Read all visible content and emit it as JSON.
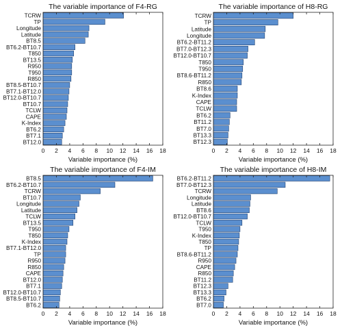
{
  "chart_data": [
    {
      "type": "bar",
      "orientation": "horizontal",
      "title": "The variable importance of F4-RG",
      "xlabel": "Variable importance (%)",
      "ylabel": "",
      "xlim": [
        0,
        18
      ],
      "xticks": [
        0,
        2,
        4,
        6,
        8,
        10,
        12,
        14,
        16,
        18
      ],
      "grid": false,
      "bar_color": "#5b8fcf",
      "categories": [
        "TCRW",
        "TP",
        "Longitude",
        "Latitude",
        "BT8.5",
        "BT6.2-BT10.7",
        "T850",
        "BT13.5",
        "R950",
        "T950",
        "R850",
        "BT8.5-BT10.7",
        "BT7.1-BT12.0",
        "BT12.0-BT10.7",
        "BT10.7",
        "TCLW",
        "CAPE",
        "K-Index",
        "BT6.2",
        "BT7.1",
        "BT12.0"
      ],
      "values": [
        12.1,
        9.3,
        6.9,
        6.8,
        6.3,
        4.8,
        4.6,
        4.4,
        4.3,
        4.3,
        4.2,
        4.0,
        3.9,
        3.8,
        3.7,
        3.6,
        3.5,
        3.3,
        3.1,
        2.9,
        2.8
      ]
    },
    {
      "type": "bar",
      "orientation": "horizontal",
      "title": "The variable importance of H8-RG",
      "xlabel": "Variable importance (%)",
      "ylabel": "",
      "xlim": [
        0,
        18
      ],
      "xticks": [
        0,
        2,
        4,
        6,
        8,
        10,
        12,
        14,
        16,
        18
      ],
      "grid": false,
      "bar_color": "#5b8fcf",
      "categories": [
        "TCRW",
        "TP",
        "Latitude",
        "Longitude",
        "BT6.2-BT11.2",
        "BT7.0-BT12.3",
        "BT12.0-BT10.7",
        "T850",
        "T950",
        "BT8.6-BT11.2",
        "R850",
        "BT8.6",
        "K-Index",
        "CAPE",
        "TCLW",
        "BT6.2",
        "BT11.2",
        "BT7.0",
        "BT13.3",
        "BT12.3"
      ],
      "values": [
        12.0,
        9.7,
        7.8,
        7.7,
        6.2,
        5.2,
        5.1,
        4.5,
        4.4,
        4.3,
        4.2,
        3.6,
        3.6,
        3.5,
        3.5,
        2.5,
        2.4,
        2.3,
        2.2,
        2.1
      ]
    },
    {
      "type": "bar",
      "orientation": "horizontal",
      "title": "The variable importance of F4-IM",
      "xlabel": "Variable importance (%)",
      "ylabel": "",
      "xlim": [
        0,
        18
      ],
      "xticks": [
        0,
        2,
        4,
        6,
        8,
        10,
        12,
        14,
        16,
        18
      ],
      "grid": false,
      "bar_color": "#5b8fcf",
      "categories": [
        "BT8.5",
        "BT6.2-BT10.7",
        "TCRW",
        "BT10.7",
        "Longitude",
        "Latitude",
        "TCLW",
        "BT13.5",
        "T950",
        "T850",
        "K-Index",
        "BT7.1-BT12.0",
        "TP",
        "R950",
        "R850",
        "CAPE",
        "BT12.0",
        "BT7.1",
        "BT12.0-BT10.7",
        "BT8.5-BT10.7",
        "BT6.2"
      ],
      "values": [
        16.5,
        10.8,
        8.6,
        5.6,
        5.4,
        5.1,
        4.8,
        4.5,
        3.9,
        3.7,
        3.6,
        3.4,
        3.4,
        3.3,
        3.1,
        3.0,
        2.9,
        2.8,
        2.6,
        2.5,
        2.4
      ]
    },
    {
      "type": "bar",
      "orientation": "horizontal",
      "title": "The variable importance of H8-IM",
      "xlabel": "Variable importance (%)",
      "ylabel": "",
      "xlim": [
        0,
        18
      ],
      "xticks": [
        0,
        2,
        4,
        6,
        8,
        10,
        12,
        14,
        16,
        18
      ],
      "grid": false,
      "bar_color": "#5b8fcf",
      "categories": [
        "BT6.2-BT11.2",
        "BT7.0-BT12.3",
        "TCRW",
        "Longitude",
        "Latitude",
        "BT8.6",
        "BT12.0-BT10.7",
        "TCLW",
        "T950",
        "K-Index",
        "T850",
        "TP",
        "BT8.6-BT11.2",
        "R950",
        "CAPE",
        "R850",
        "BT11.2",
        "BT12.3",
        "BT13.3",
        "BT6.2",
        "BT7.0"
      ],
      "values": [
        17.5,
        10.8,
        9.6,
        5.6,
        5.5,
        5.4,
        5.1,
        4.3,
        4.0,
        3.9,
        3.8,
        3.7,
        3.6,
        3.4,
        3.2,
        3.0,
        2.9,
        2.2,
        1.9,
        1.6,
        1.5
      ]
    }
  ]
}
